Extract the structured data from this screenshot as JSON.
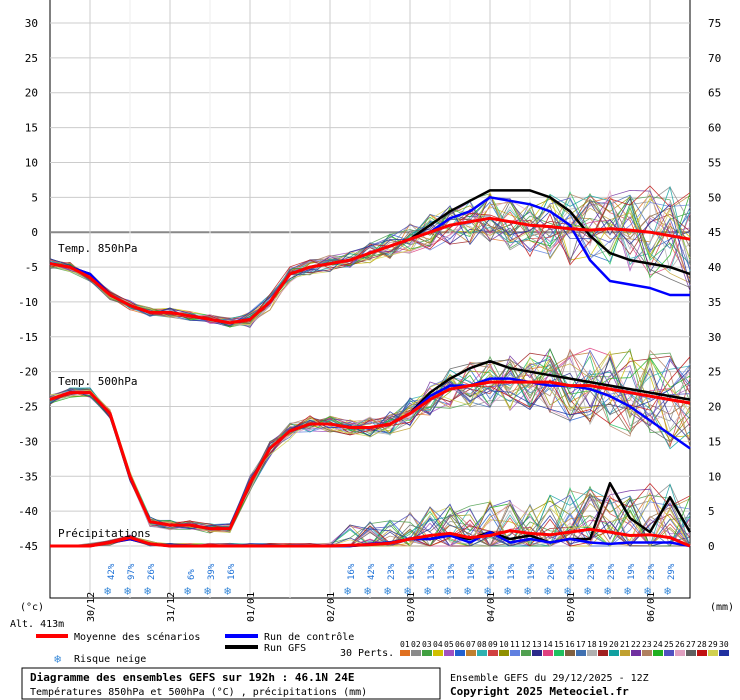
{
  "chart_data": {
    "type": "line",
    "title": "Diagramme des ensembles GEFS sur 192h : 46.1N 24E",
    "subtitle": "Températures 850hPa et 500hPa (°C) , précipitations (mm)",
    "run_info": "Ensemble GEFS du 29/12/2025 - 12Z",
    "copyright": "Copyright 2025 Meteociel.fr",
    "altitude": "Alt. 413m",
    "y_left_unit": "(°c)",
    "y_right_unit": "(mm)",
    "y_left_range": [
      -45,
      30
    ],
    "y_right_range": [
      0,
      75
    ],
    "y_left_ticks": [
      "30",
      "25",
      "20",
      "15",
      "10",
      "5",
      "0",
      "-5",
      "-10",
      "-15",
      "-20",
      "-25",
      "-30",
      "-35",
      "-40",
      "-45"
    ],
    "y_right_ticks": [
      "75",
      "70",
      "65",
      "60",
      "55",
      "50",
      "45",
      "40",
      "35",
      "30",
      "25",
      "20",
      "15",
      "10",
      "5",
      "0"
    ],
    "x_range_hours": [
      0,
      192
    ],
    "x_tick_labels": [
      {
        "label": "30/12",
        "hour": 12
      },
      {
        "label": "31/12",
        "hour": 36
      },
      {
        "label": "01/01",
        "hour": 60
      },
      {
        "label": "02/01",
        "hour": 84
      },
      {
        "label": "03/01",
        "hour": 108
      },
      {
        "label": "04/01",
        "hour": 132
      },
      {
        "label": "05/01",
        "hour": 156
      },
      {
        "label": "06/01",
        "hour": 180
      }
    ],
    "panel_labels": {
      "t850": "Temp. 850hPa",
      "t500": "Temp. 500hPa",
      "precip": "Précipitations"
    },
    "legend": {
      "mean": "Moyenne des scénarios",
      "control": "Run de contrôle",
      "gfs": "Run GFS",
      "snow": "Risque neige",
      "perts": "30 Perts.",
      "member_numbers": [
        "01",
        "02",
        "03",
        "04",
        "05",
        "06",
        "07",
        "08",
        "09",
        "10",
        "11",
        "12",
        "13",
        "14",
        "15",
        "16",
        "17",
        "18",
        "19",
        "20",
        "21",
        "22",
        "23",
        "24",
        "25",
        "26",
        "27",
        "28",
        "29",
        "30"
      ],
      "member_colors": [
        "#e07020",
        "#8a8a8a",
        "#40a040",
        "#d0c000",
        "#a050c0",
        "#2060d0",
        "#c08030",
        "#30b0b0",
        "#d04040",
        "#909000",
        "#6080e0",
        "#50a050",
        "#2a2a8a",
        "#e04080",
        "#20c060",
        "#806040",
        "#4070b0",
        "#b0b0b0",
        "#a02020",
        "#10a0a0",
        "#c0a030",
        "#7030a0",
        "#b08060",
        "#20b020",
        "#5050c0",
        "#e0a0c0",
        "#606060",
        "#c01010",
        "#d0d050",
        "#2030a0"
      ],
      "colors": {
        "mean": "#ff0000",
        "control": "#0000ff",
        "gfs": "#000000"
      }
    },
    "snow_risk": [
      {
        "hour": 18,
        "pct": "42%"
      },
      {
        "hour": 24,
        "pct": "97%"
      },
      {
        "hour": 30,
        "pct": "26%"
      },
      {
        "hour": 42,
        "pct": "6%"
      },
      {
        "hour": 48,
        "pct": "39%"
      },
      {
        "hour": 54,
        "pct": "16%"
      },
      {
        "hour": 90,
        "pct": "16%"
      },
      {
        "hour": 96,
        "pct": "42%"
      },
      {
        "hour": 102,
        "pct": "23%"
      },
      {
        "hour": 108,
        "pct": "16%"
      },
      {
        "hour": 114,
        "pct": "13%"
      },
      {
        "hour": 120,
        "pct": "13%"
      },
      {
        "hour": 126,
        "pct": "10%"
      },
      {
        "hour": 132,
        "pct": "16%"
      },
      {
        "hour": 138,
        "pct": "13%"
      },
      {
        "hour": 144,
        "pct": "19%"
      },
      {
        "hour": 150,
        "pct": "26%"
      },
      {
        "hour": 156,
        "pct": "26%"
      },
      {
        "hour": 162,
        "pct": "23%"
      },
      {
        "hour": 168,
        "pct": "23%"
      },
      {
        "hour": 174,
        "pct": "19%"
      },
      {
        "hour": 180,
        "pct": "23%"
      },
      {
        "hour": 186,
        "pct": "29%"
      }
    ],
    "series": [
      {
        "name": "Moyenne des scénarios",
        "panel": "t850",
        "color": "#ff0000",
        "x": [
          0,
          6,
          12,
          18,
          24,
          30,
          36,
          42,
          48,
          54,
          60,
          66,
          72,
          78,
          84,
          90,
          96,
          102,
          108,
          114,
          120,
          126,
          132,
          138,
          144,
          150,
          156,
          162,
          168,
          174,
          180,
          186,
          192
        ],
        "values": [
          -4.5,
          -5,
          -6.5,
          -9,
          -10.5,
          -11.5,
          -11.5,
          -12,
          -12.5,
          -13,
          -12.5,
          -10,
          -6,
          -5,
          -4.5,
          -4,
          -3,
          -2,
          -1,
          0,
          1,
          1.5,
          2,
          1.5,
          1,
          0.8,
          0.5,
          0.3,
          0.5,
          0.3,
          0,
          -0.5,
          -1
        ]
      },
      {
        "name": "Run de contrôle",
        "panel": "t850",
        "color": "#0000ff",
        "x": [
          0,
          6,
          12,
          18,
          24,
          30,
          36,
          42,
          48,
          54,
          60,
          66,
          72,
          78,
          84,
          90,
          96,
          102,
          108,
          114,
          120,
          126,
          132,
          138,
          144,
          150,
          156,
          162,
          168,
          174,
          180,
          186,
          192
        ],
        "values": [
          -4.5,
          -5,
          -6,
          -9,
          -10.5,
          -11.5,
          -11.5,
          -12,
          -12.5,
          -13,
          -12.5,
          -10,
          -6,
          -5,
          -4.5,
          -4,
          -3,
          -2,
          -1,
          0,
          2,
          3,
          5,
          4.5,
          4,
          3,
          1,
          -4,
          -7,
          -7.5,
          -8,
          -9,
          -9
        ]
      },
      {
        "name": "Run GFS",
        "panel": "t850",
        "color": "#000000",
        "x": [
          0,
          6,
          12,
          18,
          24,
          30,
          36,
          42,
          48,
          54,
          60,
          66,
          72,
          78,
          84,
          90,
          96,
          102,
          108,
          114,
          120,
          126,
          132,
          138,
          144,
          150,
          156,
          162,
          168,
          174,
          180,
          186,
          192
        ],
        "values": [
          -4.5,
          -5,
          -6,
          -9,
          -10.5,
          -11.5,
          -11.5,
          -12,
          -12.5,
          -13,
          -12.5,
          -10,
          -6,
          -5,
          -4.5,
          -4,
          -3,
          -2,
          -1,
          1,
          3,
          4.5,
          6,
          6,
          6,
          5,
          3,
          -0.5,
          -3,
          -4,
          -4.5,
          -5,
          -6
        ]
      },
      {
        "name": "Moyenne des scénarios",
        "panel": "t500",
        "color": "#ff0000",
        "x": [
          0,
          6,
          12,
          18,
          24,
          30,
          36,
          42,
          48,
          54,
          60,
          66,
          72,
          78,
          84,
          90,
          96,
          102,
          108,
          114,
          120,
          126,
          132,
          138,
          144,
          150,
          156,
          162,
          168,
          174,
          180,
          186,
          192
        ],
        "values": [
          -24,
          -23,
          -23,
          -26,
          -35,
          -41.5,
          -42,
          -42,
          -42.5,
          -42.5,
          -36,
          -31,
          -28.5,
          -27.5,
          -27.5,
          -28,
          -28,
          -27.5,
          -26,
          -24,
          -22.5,
          -22,
          -21.5,
          -21.5,
          -21.5,
          -21.5,
          -22,
          -22,
          -22.5,
          -23,
          -23.5,
          -24,
          -24.5
        ]
      },
      {
        "name": "Run de contrôle",
        "panel": "t500",
        "color": "#0000ff",
        "x": [
          0,
          6,
          12,
          18,
          24,
          30,
          36,
          42,
          48,
          54,
          60,
          66,
          72,
          78,
          84,
          90,
          96,
          102,
          108,
          114,
          120,
          126,
          132,
          138,
          144,
          150,
          156,
          162,
          168,
          174,
          180,
          186,
          192
        ],
        "values": [
          -24,
          -23,
          -23,
          -26,
          -35,
          -41.5,
          -42,
          -42,
          -42.5,
          -42.5,
          -36,
          -31,
          -28.5,
          -27.5,
          -27.5,
          -28,
          -28,
          -27.5,
          -26,
          -23.5,
          -22,
          -22,
          -21,
          -21,
          -21.5,
          -22,
          -22,
          -22.5,
          -23.5,
          -25,
          -27,
          -29,
          -31
        ]
      },
      {
        "name": "Run GFS",
        "panel": "t500",
        "color": "#000000",
        "x": [
          0,
          6,
          12,
          18,
          24,
          30,
          36,
          42,
          48,
          54,
          60,
          66,
          72,
          78,
          84,
          90,
          96,
          102,
          108,
          114,
          120,
          126,
          132,
          138,
          144,
          150,
          156,
          162,
          168,
          174,
          180,
          186,
          192
        ],
        "values": [
          -24,
          -23,
          -23,
          -26,
          -35,
          -41.5,
          -42,
          -42,
          -42.5,
          -42.5,
          -36,
          -31,
          -28.5,
          -27.5,
          -27.5,
          -28,
          -28,
          -27.5,
          -26,
          -23,
          -21,
          -19.5,
          -18.5,
          -19.5,
          -20,
          -20.5,
          -21,
          -21.5,
          -22,
          -22.5,
          -23,
          -23.5,
          -24
        ]
      },
      {
        "name": "Moyenne des scénarios",
        "panel": "precip",
        "color": "#ff0000",
        "x": [
          0,
          6,
          12,
          18,
          24,
          30,
          36,
          42,
          48,
          54,
          60,
          66,
          72,
          78,
          84,
          90,
          96,
          102,
          108,
          114,
          120,
          126,
          132,
          138,
          144,
          150,
          156,
          162,
          168,
          174,
          180,
          186,
          192
        ],
        "values": [
          0,
          0,
          0,
          0.5,
          1.2,
          0.3,
          0,
          0,
          0,
          0,
          0,
          0,
          0,
          0,
          0,
          0.1,
          0.2,
          0.4,
          1,
          1.5,
          1.8,
          1.2,
          1.5,
          2.2,
          1.8,
          1.6,
          2,
          2.4,
          2,
          1.5,
          1.6,
          1.2,
          0
        ]
      },
      {
        "name": "Run de contrôle",
        "panel": "precip",
        "color": "#0000ff",
        "x": [
          0,
          6,
          12,
          18,
          24,
          30,
          36,
          42,
          48,
          54,
          60,
          66,
          72,
          78,
          84,
          90,
          96,
          102,
          108,
          114,
          120,
          126,
          132,
          138,
          144,
          150,
          156,
          162,
          168,
          174,
          180,
          186,
          192
        ],
        "values": [
          0,
          0,
          0,
          0.5,
          1,
          0.3,
          0,
          0,
          0,
          0,
          0,
          0,
          0,
          0,
          0,
          0,
          0.3,
          0.5,
          1,
          1,
          1.5,
          0.5,
          2,
          0.5,
          1,
          0.5,
          1,
          0.5,
          0.3,
          0.5,
          0.5,
          0.5,
          0
        ]
      },
      {
        "name": "Run GFS",
        "panel": "precip",
        "color": "#000000",
        "x": [
          0,
          6,
          12,
          18,
          24,
          30,
          36,
          42,
          48,
          54,
          60,
          66,
          72,
          78,
          84,
          90,
          96,
          102,
          108,
          114,
          120,
          126,
          132,
          138,
          144,
          150,
          156,
          162,
          168,
          174,
          180,
          186,
          192
        ],
        "values": [
          0,
          0,
          0,
          0.5,
          1,
          0.3,
          0,
          0,
          0,
          0,
          0,
          0,
          0,
          0,
          0,
          0,
          0.2,
          0.5,
          1,
          1,
          1.5,
          1,
          2,
          1,
          1.5,
          0.5,
          1,
          1,
          9,
          4,
          2,
          7,
          2
        ]
      }
    ]
  }
}
